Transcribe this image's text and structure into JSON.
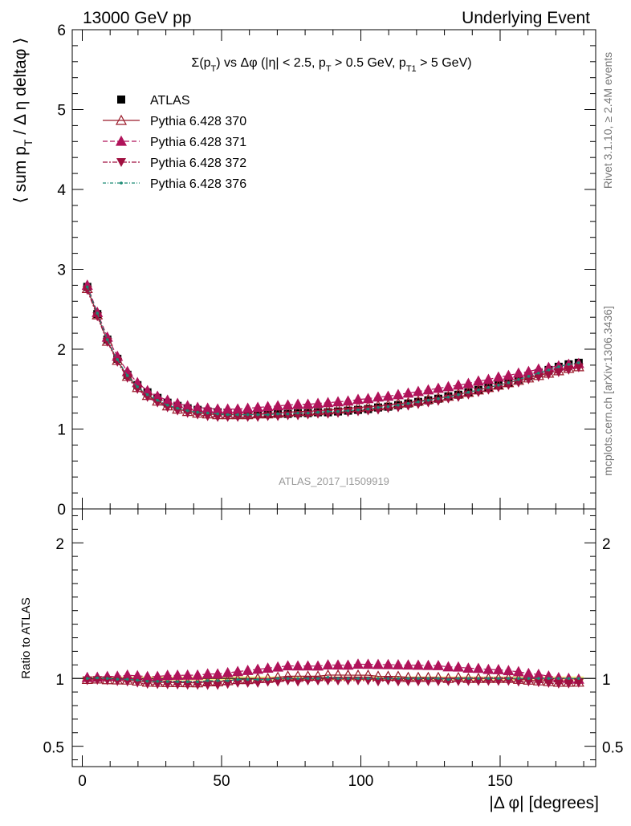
{
  "header": {
    "left": "13000 GeV pp",
    "right": "Underlying Event"
  },
  "side_text": {
    "rivet": "Rivet 3.1.10, ≥ 2.4M events",
    "source": "mcplots.cern.ch [arXiv:1306.3436]"
  },
  "watermark": "ATLAS_2017_I1509919",
  "chart_data": [
    {
      "type": "line",
      "panel": "main",
      "title": "Σ(p_T) vs Δφ (|η| < 2.5, p_T > 0.5 GeV, p_T1 > 5 GeV)",
      "title_parts": {
        "sigma": "Σ(p",
        "t1_sub": "T",
        "mid": ") vs Δφ (|η| < 2.5, p",
        "t2_sub": "T",
        "mid2": " > 0.5 GeV, p",
        "t3_sub": "T1",
        "end": " > 5 GeV)"
      },
      "ylabel": "⟨ sum p_T / Δη deltaφ ⟩",
      "ylabel_parts": {
        "a": "⟨ sum p",
        "sub": "T",
        "b": " / Δ η deltaφ ⟩"
      },
      "xlabel": "",
      "xlim": [
        -3.6,
        184.3
      ],
      "ylim": [
        0,
        6
      ],
      "yticks": [
        "0",
        "1",
        "2",
        "3",
        "4",
        "5",
        "6"
      ],
      "legend_position": "top-left",
      "x": [
        1.8,
        5.4,
        9.0,
        12.6,
        16.2,
        19.8,
        23.4,
        27.0,
        30.6,
        34.2,
        37.8,
        41.4,
        45.0,
        48.6,
        52.2,
        55.8,
        59.4,
        63.0,
        66.6,
        70.2,
        73.8,
        77.4,
        81.0,
        84.6,
        88.2,
        91.8,
        95.4,
        99.0,
        102.6,
        106.2,
        109.8,
        113.4,
        117.0,
        120.6,
        124.2,
        127.8,
        131.4,
        135.0,
        138.6,
        142.2,
        145.8,
        149.4,
        153.0,
        156.6,
        160.2,
        163.8,
        167.4,
        171.0,
        174.6,
        178.2
      ],
      "series": [
        {
          "name": "ATLAS",
          "color": "#000000",
          "marker": "square",
          "values": [
            2.78,
            2.44,
            2.12,
            1.88,
            1.68,
            1.55,
            1.46,
            1.39,
            1.33,
            1.29,
            1.26,
            1.24,
            1.22,
            1.21,
            1.2,
            1.19,
            1.19,
            1.19,
            1.19,
            1.19,
            1.19,
            1.2,
            1.2,
            1.21,
            1.21,
            1.22,
            1.23,
            1.24,
            1.25,
            1.27,
            1.28,
            1.3,
            1.32,
            1.34,
            1.36,
            1.38,
            1.41,
            1.43,
            1.46,
            1.49,
            1.52,
            1.55,
            1.58,
            1.62,
            1.66,
            1.7,
            1.74,
            1.78,
            1.81,
            1.83
          ]
        },
        {
          "name": "Pythia 6.428 370",
          "color": "#9a1b2a",
          "marker": "triangle-up-open",
          "dash": "",
          "values": [
            2.76,
            2.43,
            2.1,
            1.86,
            1.66,
            1.52,
            1.42,
            1.35,
            1.29,
            1.25,
            1.22,
            1.2,
            1.19,
            1.18,
            1.18,
            1.18,
            1.18,
            1.19,
            1.19,
            1.2,
            1.21,
            1.22,
            1.22,
            1.23,
            1.24,
            1.25,
            1.26,
            1.27,
            1.28,
            1.29,
            1.3,
            1.32,
            1.33,
            1.35,
            1.37,
            1.39,
            1.41,
            1.44,
            1.46,
            1.49,
            1.52,
            1.55,
            1.58,
            1.61,
            1.64,
            1.67,
            1.7,
            1.73,
            1.76,
            1.78
          ]
        },
        {
          "name": "Pythia 6.428 371",
          "color": "#b0135a",
          "marker": "triangle-up",
          "dash": "6,3",
          "values": [
            2.8,
            2.46,
            2.15,
            1.91,
            1.72,
            1.58,
            1.48,
            1.41,
            1.36,
            1.32,
            1.29,
            1.27,
            1.26,
            1.25,
            1.25,
            1.25,
            1.26,
            1.27,
            1.28,
            1.29,
            1.3,
            1.31,
            1.31,
            1.32,
            1.33,
            1.34,
            1.35,
            1.37,
            1.38,
            1.4,
            1.41,
            1.43,
            1.45,
            1.47,
            1.49,
            1.51,
            1.53,
            1.55,
            1.57,
            1.6,
            1.62,
            1.65,
            1.67,
            1.7,
            1.72,
            1.75,
            1.77,
            1.79,
            1.81,
            1.82
          ]
        },
        {
          "name": "Pythia 6.428 372",
          "color": "#a01040",
          "marker": "triangle-down",
          "dash": "6,2,2,2",
          "values": [
            2.74,
            2.41,
            2.09,
            1.84,
            1.64,
            1.5,
            1.4,
            1.33,
            1.27,
            1.23,
            1.2,
            1.18,
            1.16,
            1.15,
            1.15,
            1.15,
            1.15,
            1.15,
            1.16,
            1.16,
            1.17,
            1.17,
            1.18,
            1.19,
            1.19,
            1.2,
            1.21,
            1.22,
            1.23,
            1.24,
            1.26,
            1.27,
            1.29,
            1.31,
            1.33,
            1.35,
            1.38,
            1.4,
            1.43,
            1.46,
            1.49,
            1.52,
            1.55,
            1.58,
            1.62,
            1.65,
            1.68,
            1.71,
            1.74,
            1.77
          ]
        },
        {
          "name": "Pythia 6.428 376",
          "color": "#1a8a74",
          "marker": "dot",
          "dash": "4,2,1,2",
          "values": [
            2.78,
            2.45,
            2.12,
            1.87,
            1.67,
            1.53,
            1.43,
            1.36,
            1.3,
            1.26,
            1.23,
            1.21,
            1.2,
            1.19,
            1.18,
            1.18,
            1.18,
            1.18,
            1.18,
            1.19,
            1.19,
            1.2,
            1.2,
            1.21,
            1.22,
            1.22,
            1.23,
            1.24,
            1.25,
            1.27,
            1.28,
            1.3,
            1.32,
            1.34,
            1.36,
            1.38,
            1.4,
            1.43,
            1.46,
            1.49,
            1.52,
            1.55,
            1.58,
            1.62,
            1.66,
            1.7,
            1.74,
            1.78,
            1.81,
            1.83
          ]
        }
      ]
    },
    {
      "type": "line",
      "panel": "ratio",
      "ylabel": "Ratio to ATLAS",
      "xlabel": "|Δ φ| [degrees]",
      "xlim": [
        -3.6,
        184.3
      ],
      "ylim": [
        0.35,
        2.25
      ],
      "xticks": [
        "0",
        "50",
        "100",
        "150"
      ],
      "yticks": [
        "0.5",
        "1",
        "2"
      ],
      "reference_band": {
        "low": 0.985,
        "high": 1.015,
        "color": "#f5f58c"
      }
    }
  ]
}
